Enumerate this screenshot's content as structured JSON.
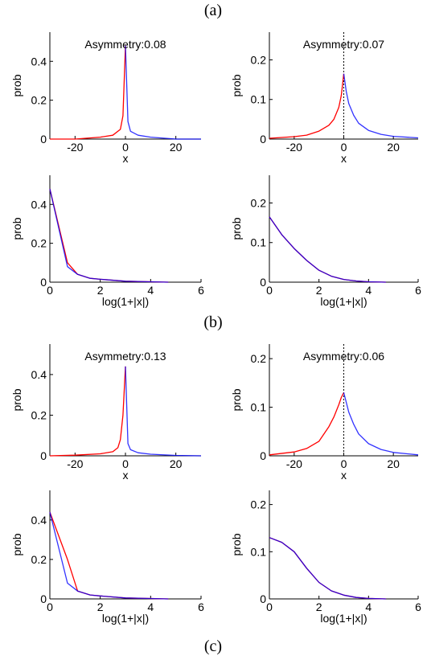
{
  "figure": {
    "labels": [
      "(a)",
      "(b)",
      "(c)"
    ]
  },
  "colors": {
    "left_tail": "#ff0000",
    "right_tail": "#0000ff",
    "overlay": "#7f3fbf",
    "marker": "#000000"
  },
  "chart_data": [
    {
      "type": "line",
      "xlabel": "x",
      "ylabel": "prob",
      "xlim": [
        -30,
        30
      ],
      "ylim": [
        0,
        0.55
      ],
      "xticks": [
        -20,
        0,
        20
      ],
      "yticks": [
        0,
        0.2,
        0.4
      ],
      "annotation": "Asymmetry:0.08",
      "zero_marker": false,
      "series": [
        {
          "color": "#ff0000",
          "x": [
            -30,
            -20,
            -10,
            -5,
            -2,
            -1,
            0
          ],
          "y": [
            0,
            0,
            0.01,
            0.02,
            0.05,
            0.12,
            0.48
          ]
        },
        {
          "color": "#0000ff",
          "x": [
            0,
            1,
            2,
            5,
            10,
            20,
            30
          ],
          "y": [
            0.48,
            0.09,
            0.04,
            0.02,
            0.01,
            0,
            0
          ]
        }
      ]
    },
    {
      "type": "line",
      "xlabel": "x",
      "ylabel": "prob",
      "xlim": [
        -30,
        30
      ],
      "ylim": [
        0,
        0.27
      ],
      "xticks": [
        -20,
        0,
        20
      ],
      "yticks": [
        0,
        0.1,
        0.2
      ],
      "annotation": "Asymmetry:0.07",
      "zero_marker": true,
      "series": [
        {
          "color": "#ff0000",
          "x": [
            -30,
            -20,
            -15,
            -10,
            -6,
            -4,
            -2,
            -1,
            0
          ],
          "y": [
            0.002,
            0.006,
            0.01,
            0.02,
            0.035,
            0.05,
            0.08,
            0.11,
            0.165
          ]
        },
        {
          "color": "#0000ff",
          "x": [
            0,
            1,
            2,
            4,
            6,
            10,
            15,
            20,
            30
          ],
          "y": [
            0.165,
            0.12,
            0.09,
            0.06,
            0.04,
            0.022,
            0.012,
            0.007,
            0.003
          ]
        }
      ]
    },
    {
      "type": "line",
      "xlabel": "log(1+|x|)",
      "ylabel": "prob",
      "xlim": [
        0,
        6
      ],
      "ylim": [
        0,
        0.55
      ],
      "xticks": [
        0,
        2,
        4,
        6
      ],
      "yticks": [
        0,
        0.2,
        0.4
      ],
      "series": [
        {
          "color": "#ff0000",
          "x": [
            0,
            0.7,
            1.1,
            1.6,
            2.0,
            3.0,
            4.0,
            4.7
          ],
          "y": [
            0.48,
            0.1,
            0.04,
            0.02,
            0.015,
            0.005,
            0.002,
            0
          ]
        },
        {
          "color": "#0000ff",
          "x": [
            0,
            0.7,
            1.1,
            1.6,
            2.0,
            3.0,
            4.0,
            4.7
          ],
          "y": [
            0.48,
            0.08,
            0.04,
            0.02,
            0.015,
            0.005,
            0.002,
            0
          ]
        }
      ]
    },
    {
      "type": "line",
      "xlabel": "log(1+|x|)",
      "ylabel": "prob",
      "xlim": [
        0,
        6
      ],
      "ylim": [
        0,
        0.27
      ],
      "xticks": [
        0,
        2,
        4,
        6
      ],
      "yticks": [
        0,
        0.1,
        0.2
      ],
      "series": [
        {
          "color": "#ff0000",
          "x": [
            0,
            0.5,
            1.0,
            1.5,
            2.0,
            2.5,
            3.0,
            3.5,
            4.0,
            4.7
          ],
          "y": [
            0.165,
            0.12,
            0.085,
            0.055,
            0.03,
            0.015,
            0.007,
            0.003,
            0.001,
            0
          ]
        },
        {
          "color": "#0000ff",
          "x": [
            0,
            0.5,
            1.0,
            1.5,
            2.0,
            2.5,
            3.0,
            3.5,
            4.0,
            4.7
          ],
          "y": [
            0.165,
            0.12,
            0.085,
            0.055,
            0.03,
            0.015,
            0.007,
            0.003,
            0.001,
            0
          ]
        }
      ]
    },
    {
      "type": "line",
      "xlabel": "x",
      "ylabel": "prob",
      "xlim": [
        -30,
        30
      ],
      "ylim": [
        0,
        0.55
      ],
      "xticks": [
        -20,
        0,
        20
      ],
      "yticks": [
        0,
        0.2,
        0.4
      ],
      "annotation": "Asymmetry:0.13",
      "zero_marker": false,
      "series": [
        {
          "color": "#ff0000",
          "x": [
            -30,
            -20,
            -10,
            -5,
            -3,
            -2,
            -1,
            0
          ],
          "y": [
            0,
            0.003,
            0.01,
            0.02,
            0.04,
            0.08,
            0.2,
            0.44
          ]
        },
        {
          "color": "#0000ff",
          "x": [
            0,
            1,
            2,
            5,
            10,
            20,
            30
          ],
          "y": [
            0.44,
            0.06,
            0.03,
            0.015,
            0.008,
            0.002,
            0
          ]
        }
      ]
    },
    {
      "type": "line",
      "xlabel": "x",
      "ylabel": "prob",
      "xlim": [
        -30,
        30
      ],
      "ylim": [
        0,
        0.23
      ],
      "xticks": [
        -20,
        0,
        20
      ],
      "yticks": [
        0,
        0.1,
        0.2
      ],
      "annotation": "Asymmetry:0.06",
      "zero_marker": true,
      "series": [
        {
          "color": "#ff0000",
          "x": [
            -30,
            -20,
            -15,
            -10,
            -6,
            -4,
            -2,
            -1,
            0
          ],
          "y": [
            0.002,
            0.008,
            0.015,
            0.03,
            0.06,
            0.08,
            0.105,
            0.12,
            0.13
          ]
        },
        {
          "color": "#0000ff",
          "x": [
            0,
            1,
            2,
            4,
            6,
            10,
            15,
            20,
            30
          ],
          "y": [
            0.13,
            0.11,
            0.09,
            0.065,
            0.045,
            0.025,
            0.013,
            0.007,
            0.002
          ]
        }
      ]
    },
    {
      "type": "line",
      "xlabel": "log(1+|x|)",
      "ylabel": "prob",
      "xlim": [
        0,
        6
      ],
      "ylim": [
        0,
        0.55
      ],
      "xticks": [
        0,
        2,
        4,
        6
      ],
      "yticks": [
        0,
        0.2,
        0.4
      ],
      "series": [
        {
          "color": "#ff0000",
          "x": [
            0,
            0.7,
            1.1,
            1.6,
            2.0,
            3.0,
            4.0,
            4.7
          ],
          "y": [
            0.44,
            0.2,
            0.04,
            0.02,
            0.015,
            0.005,
            0.002,
            0
          ]
        },
        {
          "color": "#0000ff",
          "x": [
            0,
            0.7,
            1.1,
            1.6,
            2.0,
            3.0,
            4.0,
            4.7
          ],
          "y": [
            0.44,
            0.08,
            0.04,
            0.02,
            0.015,
            0.005,
            0.002,
            0
          ]
        }
      ]
    },
    {
      "type": "line",
      "xlabel": "log(1+|x|)",
      "ylabel": "prob",
      "xlim": [
        0,
        6
      ],
      "ylim": [
        0,
        0.23
      ],
      "xticks": [
        0,
        2,
        4,
        6
      ],
      "yticks": [
        0,
        0.1,
        0.2
      ],
      "series": [
        {
          "color": "#ff0000",
          "x": [
            0,
            0.5,
            1.0,
            1.5,
            2.0,
            2.5,
            3.0,
            3.5,
            4.0,
            4.7
          ],
          "y": [
            0.13,
            0.12,
            0.1,
            0.065,
            0.035,
            0.017,
            0.008,
            0.003,
            0.001,
            0
          ]
        },
        {
          "color": "#0000ff",
          "x": [
            0,
            0.5,
            1.0,
            1.5,
            2.0,
            2.5,
            3.0,
            3.5,
            4.0,
            4.7
          ],
          "y": [
            0.13,
            0.12,
            0.1,
            0.065,
            0.035,
            0.017,
            0.008,
            0.003,
            0.001,
            0
          ]
        }
      ]
    }
  ]
}
